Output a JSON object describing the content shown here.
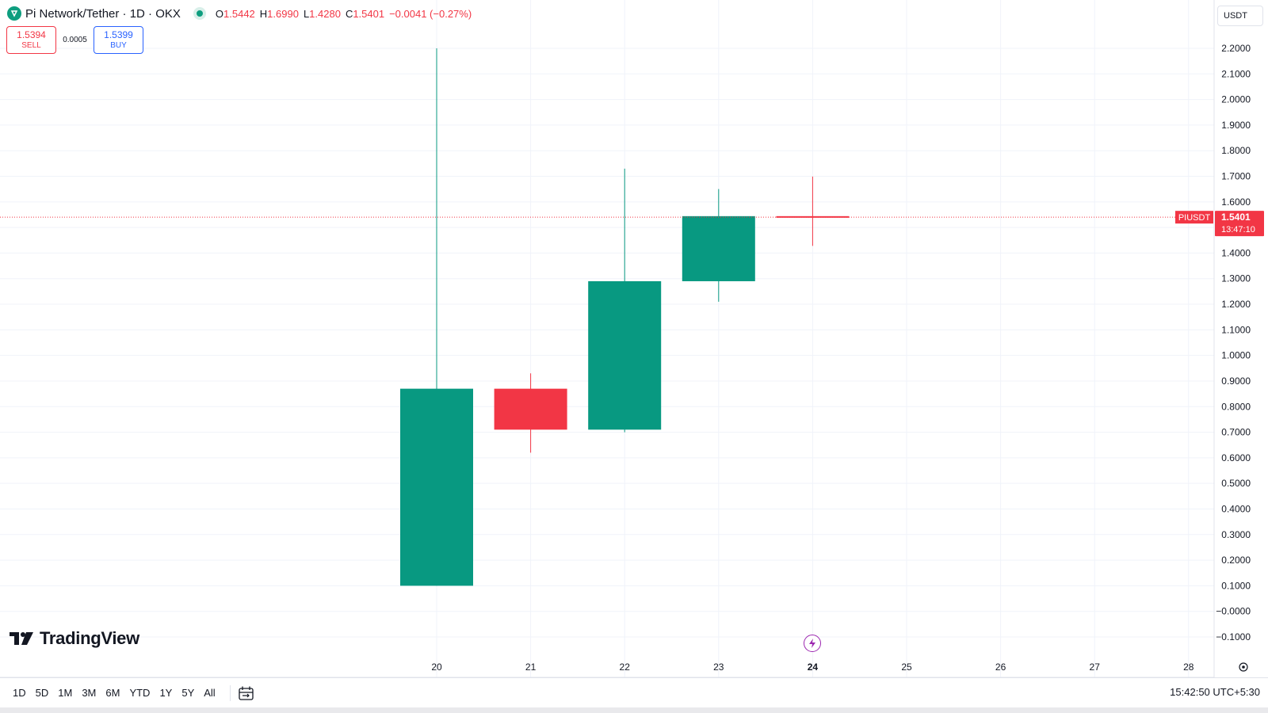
{
  "header": {
    "symbol_title": "Pi Network/Tether · 1D · OKX",
    "ohlc": {
      "o_label": "O",
      "o": "1.5442",
      "h_label": "H",
      "h": "1.6990",
      "l_label": "L",
      "l": "1.4280",
      "c_label": "C",
      "c": "1.5401",
      "change": "−0.0041 (−0.27%)"
    }
  },
  "trade": {
    "sell_price": "1.5394",
    "sell_label": "SELL",
    "spread": "0.0005",
    "buy_price": "1.5399",
    "buy_label": "BUY"
  },
  "currency": "USDT",
  "price_label": {
    "symbol": "PIUSDT",
    "price": "1.5401",
    "countdown": "13:47:10"
  },
  "brand": {
    "name": "TradingView"
  },
  "toolbar": {
    "ranges": [
      "1D",
      "5D",
      "1M",
      "3M",
      "6M",
      "YTD",
      "1Y",
      "5Y",
      "All"
    ],
    "clock": "15:42:50 UTC+5:30"
  },
  "colors": {
    "up": "#089981",
    "down": "#f23645",
    "grid": "#f0f3fa",
    "accent": "#2962ff"
  },
  "chart_data": {
    "type": "candlestick",
    "title": "Pi Network/Tether · 1D · OKX",
    "candles": [
      {
        "x": "20",
        "open": 0.1,
        "high": 2.2,
        "low": 0.1,
        "close": 0.87
      },
      {
        "x": "21",
        "open": 0.87,
        "high": 0.93,
        "low": 0.62,
        "close": 0.71
      },
      {
        "x": "22",
        "open": 0.71,
        "high": 1.73,
        "low": 0.7,
        "close": 1.29
      },
      {
        "x": "23",
        "open": 1.29,
        "high": 1.65,
        "low": 1.21,
        "close": 1.5442
      },
      {
        "x": "24",
        "open": 1.5442,
        "high": 1.699,
        "low": 1.428,
        "close": 1.5401
      }
    ],
    "x_ticks": [
      "20",
      "21",
      "22",
      "23",
      "24",
      "25",
      "26",
      "27",
      "28"
    ],
    "y_ticks": [
      "2.2000",
      "2.1000",
      "2.0000",
      "1.9000",
      "1.8000",
      "1.7000",
      "1.6000",
      "1.5000",
      "1.4000",
      "1.3000",
      "1.2000",
      "1.1000",
      "1.0000",
      "0.9000",
      "0.8000",
      "0.7000",
      "0.6000",
      "0.5000",
      "0.4000",
      "0.3000",
      "0.2000",
      "0.1000",
      "−0.0000",
      "−0.1000"
    ],
    "y_tick_values": [
      2.2,
      2.1,
      2.0,
      1.9,
      1.8,
      1.7,
      1.6,
      1.5,
      1.4,
      1.3,
      1.2,
      1.1,
      1.0,
      0.9,
      0.8,
      0.7,
      0.6,
      0.5,
      0.4,
      0.3,
      0.2,
      0.1,
      0.0,
      -0.1
    ],
    "ylim": [
      -0.13,
      2.32
    ],
    "last_price": 1.5401,
    "grid": true
  }
}
